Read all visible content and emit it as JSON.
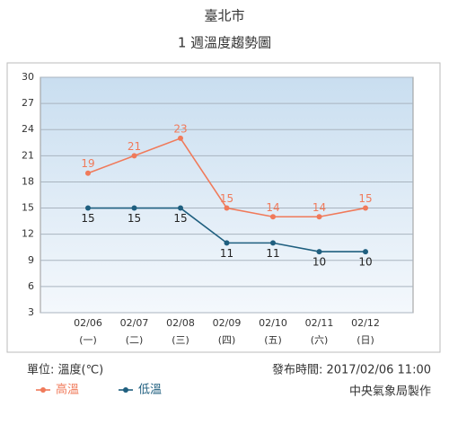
{
  "chart_data": {
    "type": "line",
    "title": "臺北市",
    "subtitle": "1 週溫度趨勢圖",
    "categories": [
      "02/06",
      "02/07",
      "02/08",
      "02/09",
      "02/10",
      "02/11",
      "02/12"
    ],
    "weekdays": [
      "(一)",
      "(二)",
      "(三)",
      "(四)",
      "(五)",
      "(六)",
      "(日)"
    ],
    "series": [
      {
        "name": "高溫",
        "color": "#f07a5a",
        "values": [
          19,
          21,
          23,
          15,
          14,
          14,
          15
        ]
      },
      {
        "name": "低溫",
        "color": "#1f5f7f",
        "values": [
          15,
          15,
          15,
          11,
          11,
          10,
          10
        ]
      }
    ],
    "ylim": [
      3,
      30
    ],
    "yticks": [
      3,
      6,
      9,
      12,
      15,
      18,
      21,
      24,
      27,
      30
    ],
    "grid": true,
    "unit_note": "單位: 溫度(℃)",
    "issued": "發布時間: 2017/02/06 11:00",
    "credit": "中央氣象局製作"
  }
}
